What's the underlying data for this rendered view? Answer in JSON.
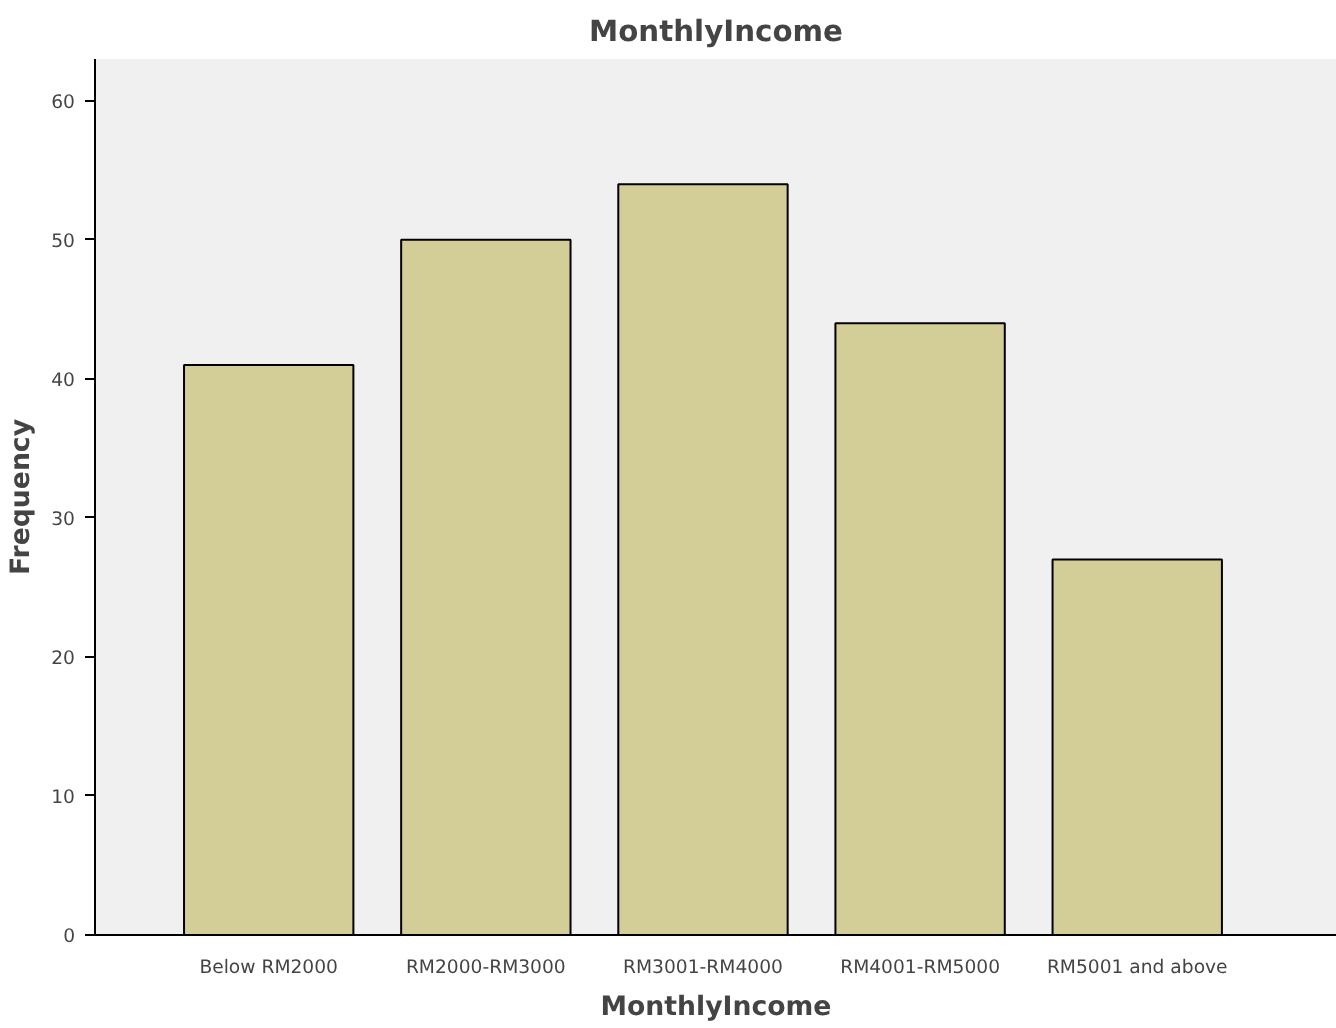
{
  "chart_data": {
    "type": "bar",
    "title": "MonthlyIncome",
    "xlabel": "MonthlyIncome",
    "ylabel": "Frequency",
    "categories": [
      "Below RM2000",
      "RM2000-RM3000",
      "RM3001-RM4000",
      "RM4001-RM5000",
      "RM5001 and above"
    ],
    "values": [
      41,
      50,
      54,
      44,
      27
    ],
    "color": "#d3ce97",
    "ylim": [
      0,
      63
    ],
    "yticks": [
      0,
      10,
      20,
      30,
      40,
      50,
      60
    ],
    "grid": false
  }
}
